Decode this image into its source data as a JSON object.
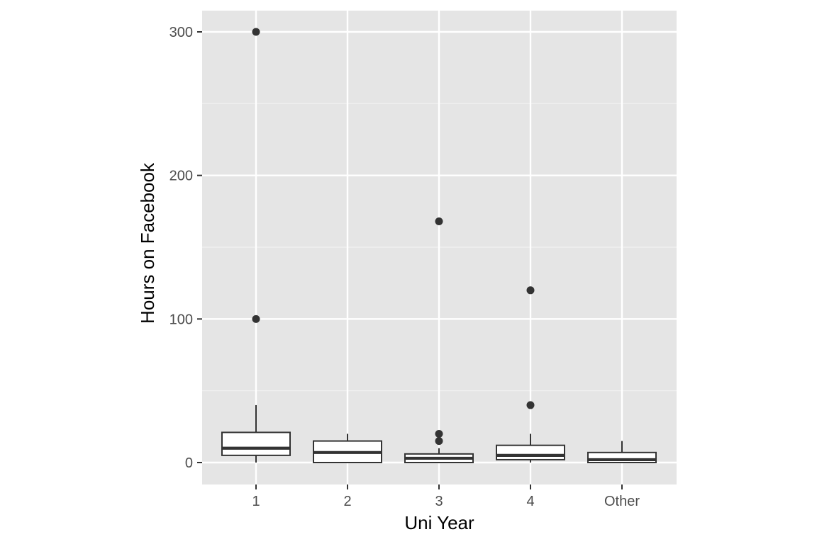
{
  "chart_data": {
    "type": "boxplot",
    "title": "",
    "xlabel": "Uni Year",
    "ylabel": "Hours on Facebook",
    "categories": [
      "1",
      "2",
      "3",
      "4",
      "Other"
    ],
    "y_ticks": [
      0,
      100,
      200,
      300
    ],
    "ylim": [
      -15,
      315
    ],
    "grid": true,
    "legend": "none",
    "boxes": [
      {
        "category": "1",
        "whisker_low": 0,
        "q1": 5,
        "median": 10,
        "q3": 21,
        "whisker_high": 40,
        "outliers": [
          100,
          300
        ]
      },
      {
        "category": "2",
        "whisker_low": 0,
        "q1": 0,
        "median": 7,
        "q3": 15,
        "whisker_high": 20,
        "outliers": []
      },
      {
        "category": "3",
        "whisker_low": 0,
        "q1": 0,
        "median": 3,
        "q3": 6,
        "whisker_high": 10,
        "outliers": [
          15,
          20,
          168
        ]
      },
      {
        "category": "4",
        "whisker_low": 0,
        "q1": 2,
        "median": 5,
        "q3": 12,
        "whisker_high": 20,
        "outliers": [
          40,
          120
        ]
      },
      {
        "category": "Other",
        "whisker_low": 0,
        "q1": 0,
        "median": 2,
        "q3": 7,
        "whisker_high": 15,
        "outliers": []
      }
    ],
    "colors": {
      "panel_background": "#e5e5e5",
      "grid_major": "#ffffff",
      "grid_minor": "#f2f2f2",
      "box_fill": "#ffffff",
      "box_line": "#333333",
      "outlier": "#333333",
      "tick_text": "#4d4d4d",
      "tick_mark": "#333333"
    }
  }
}
